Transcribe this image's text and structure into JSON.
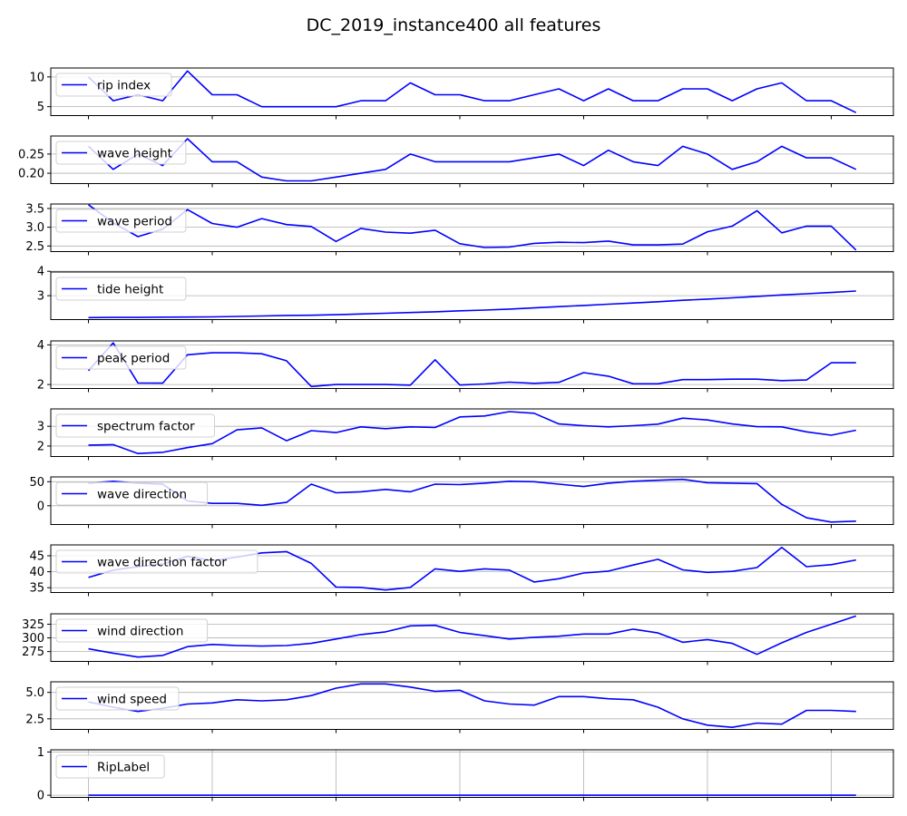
{
  "figure": {
    "title": "DC_2019_instance400 all features"
  },
  "chart_data": [
    {
      "type": "line",
      "series": [
        {
          "name": "rip index",
          "values": [
            10,
            6,
            7,
            6,
            11,
            7,
            7,
            5,
            5,
            5,
            5,
            6,
            6,
            9,
            7,
            7,
            6,
            6,
            7,
            8,
            6,
            8,
            6,
            6,
            8,
            8,
            6,
            8,
            9,
            6,
            6,
            4
          ]
        }
      ],
      "ylim": [
        3.5,
        11.5
      ],
      "yticks": [
        5,
        10
      ],
      "ytick_labels": [
        "5",
        "10"
      ],
      "grid": true,
      "legend_position": "upper left"
    },
    {
      "type": "line",
      "series": [
        {
          "name": "wave height",
          "values": [
            0.27,
            0.21,
            0.25,
            0.22,
            0.29,
            0.23,
            0.23,
            0.19,
            0.18,
            0.18,
            0.19,
            0.2,
            0.21,
            0.25,
            0.23,
            0.23,
            0.23,
            0.23,
            0.24,
            0.25,
            0.22,
            0.26,
            0.23,
            0.22,
            0.27,
            0.25,
            0.21,
            0.23,
            0.27,
            0.24,
            0.24,
            0.21
          ]
        }
      ],
      "ylim": [
        0.173,
        0.297
      ],
      "yticks": [
        0.2,
        0.25
      ],
      "ytick_labels": [
        "0.20",
        "0.25"
      ],
      "grid": true,
      "legend_position": "upper left"
    },
    {
      "type": "line",
      "series": [
        {
          "name": "wave period",
          "values": [
            3.6,
            3.12,
            2.75,
            2.95,
            3.47,
            3.1,
            3.0,
            3.23,
            3.07,
            3.02,
            2.62,
            2.97,
            2.87,
            2.84,
            2.92,
            2.56,
            2.46,
            2.47,
            2.57,
            2.6,
            2.59,
            2.63,
            2.53,
            2.53,
            2.55,
            2.88,
            3.03,
            3.44,
            2.85,
            3.03,
            3.03,
            2.39
          ]
        }
      ],
      "ylim": [
        2.35,
        3.62
      ],
      "yticks": [
        2.5,
        3.0,
        3.5
      ],
      "ytick_labels": [
        "2.5",
        "3.0",
        "3.5"
      ],
      "grid": true,
      "legend_position": "upper left"
    },
    {
      "type": "line",
      "series": [
        {
          "name": "tide height",
          "values": [
            2.1,
            2.11,
            2.11,
            2.12,
            2.125,
            2.13,
            2.15,
            2.17,
            2.19,
            2.2,
            2.22,
            2.25,
            2.28,
            2.31,
            2.34,
            2.38,
            2.41,
            2.45,
            2.5,
            2.55,
            2.6,
            2.65,
            2.7,
            2.75,
            2.81,
            2.86,
            2.91,
            2.97,
            3.03,
            3.08,
            3.13,
            3.19
          ]
        }
      ],
      "ylim": [
        2.02,
        3.97
      ],
      "yticks": [
        3,
        4
      ],
      "ytick_labels": [
        "3",
        "4"
      ],
      "grid": true,
      "legend_position": "upper left"
    },
    {
      "type": "line",
      "series": [
        {
          "name": "peak period",
          "values": [
            2.7,
            4.1,
            2.08,
            2.07,
            3.5,
            3.6,
            3.6,
            3.55,
            3.2,
            1.9,
            2.0,
            2.0,
            2.0,
            1.97,
            3.25,
            1.98,
            2.03,
            2.12,
            2.06,
            2.11,
            2.6,
            2.42,
            2.04,
            2.04,
            2.25,
            2.25,
            2.27,
            2.27,
            2.2,
            2.23,
            3.1,
            3.1
          ]
        }
      ],
      "ylim": [
        1.8,
        4.2
      ],
      "yticks": [
        2,
        4
      ],
      "ytick_labels": [
        "2",
        "4"
      ],
      "grid": true,
      "legend_position": "upper left"
    },
    {
      "type": "line",
      "series": [
        {
          "name": "spectrum factor",
          "values": [
            2.05,
            2.07,
            1.62,
            1.68,
            1.92,
            2.12,
            2.82,
            2.92,
            2.27,
            2.78,
            2.68,
            2.97,
            2.88,
            2.97,
            2.94,
            3.47,
            3.52,
            3.74,
            3.66,
            3.12,
            3.03,
            2.97,
            3.03,
            3.11,
            3.41,
            3.32,
            3.12,
            2.98,
            2.97,
            2.72,
            2.55,
            2.8
          ]
        }
      ],
      "ylim": [
        1.47,
        3.88
      ],
      "yticks": [
        2,
        3
      ],
      "ytick_labels": [
        "2",
        "3"
      ],
      "grid": true,
      "legend_position": "upper left"
    },
    {
      "type": "line",
      "series": [
        {
          "name": "wave direction",
          "values": [
            47,
            51,
            47,
            45,
            10,
            5,
            5,
            1,
            7,
            45,
            27,
            29,
            34,
            29,
            45,
            44,
            47,
            51,
            50,
            45,
            40,
            47,
            51,
            53,
            55,
            48,
            47,
            46,
            3,
            -25,
            -34,
            -32
          ]
        }
      ],
      "ylim": [
        -39,
        60
      ],
      "yticks": [
        0,
        50
      ],
      "ytick_labels": [
        "0",
        "50"
      ],
      "grid": true,
      "legend_position": "upper left"
    },
    {
      "type": "line",
      "series": [
        {
          "name": "wave direction factor",
          "values": [
            38.2,
            40.5,
            41.6,
            42.4,
            44.8,
            43.5,
            44.6,
            45.9,
            46.3,
            42.6,
            35.2,
            35.1,
            34.3,
            35.1,
            40.9,
            40.1,
            40.9,
            40.5,
            36.8,
            37.8,
            39.6,
            40.2,
            42.1,
            43.9,
            40.6,
            39.8,
            40.1,
            41.3,
            47.6,
            41.6,
            42.2,
            43.7
          ]
        }
      ],
      "ylim": [
        33.5,
        48.4
      ],
      "yticks": [
        35,
        40,
        45
      ],
      "ytick_labels": [
        "35",
        "40",
        "45"
      ],
      "grid": true,
      "legend_position": "upper left"
    },
    {
      "type": "line",
      "series": [
        {
          "name": "wind direction",
          "values": [
            280,
            272,
            265,
            268,
            284,
            288,
            286,
            285,
            286,
            290,
            298,
            306,
            311,
            322,
            323,
            310,
            304,
            298,
            301,
            303,
            307,
            307,
            316,
            309,
            292,
            297,
            290,
            270,
            291,
            310,
            325,
            340
          ]
        }
      ],
      "ylim": [
        257,
        344
      ],
      "yticks": [
        275,
        300,
        325
      ],
      "ytick_labels": [
        "275",
        "300",
        "325"
      ],
      "grid": true,
      "legend_position": "upper left"
    },
    {
      "type": "line",
      "series": [
        {
          "name": "wind speed",
          "values": [
            4.1,
            3.6,
            3.2,
            3.5,
            3.9,
            4.0,
            4.3,
            4.2,
            4.3,
            4.7,
            5.4,
            5.8,
            5.8,
            5.5,
            5.1,
            5.2,
            4.2,
            3.9,
            3.8,
            4.6,
            4.6,
            4.4,
            4.3,
            3.6,
            2.5,
            1.9,
            1.7,
            2.1,
            2.0,
            3.3,
            3.3,
            3.2
          ]
        }
      ],
      "ylim": [
        1.5,
        6.0
      ],
      "yticks": [
        2.5,
        5.0
      ],
      "ytick_labels": [
        "2.5",
        "5.0"
      ],
      "grid": true,
      "legend_position": "upper left"
    },
    {
      "type": "line",
      "series": [
        {
          "name": "RipLabel",
          "values": [
            0,
            0,
            0,
            0,
            0,
            0,
            0,
            0,
            0,
            0,
            0,
            0,
            0,
            0,
            0,
            0,
            0,
            0,
            0,
            0,
            0,
            0,
            0,
            0,
            0,
            0,
            0,
            0,
            0,
            0,
            0,
            0
          ]
        }
      ],
      "ylim": [
        -0.05,
        1.05
      ],
      "yticks": [
        0,
        1
      ],
      "ytick_labels": [
        "0",
        "1"
      ],
      "grid": true,
      "show_xgrid": true,
      "legend_position": "upper left"
    }
  ]
}
